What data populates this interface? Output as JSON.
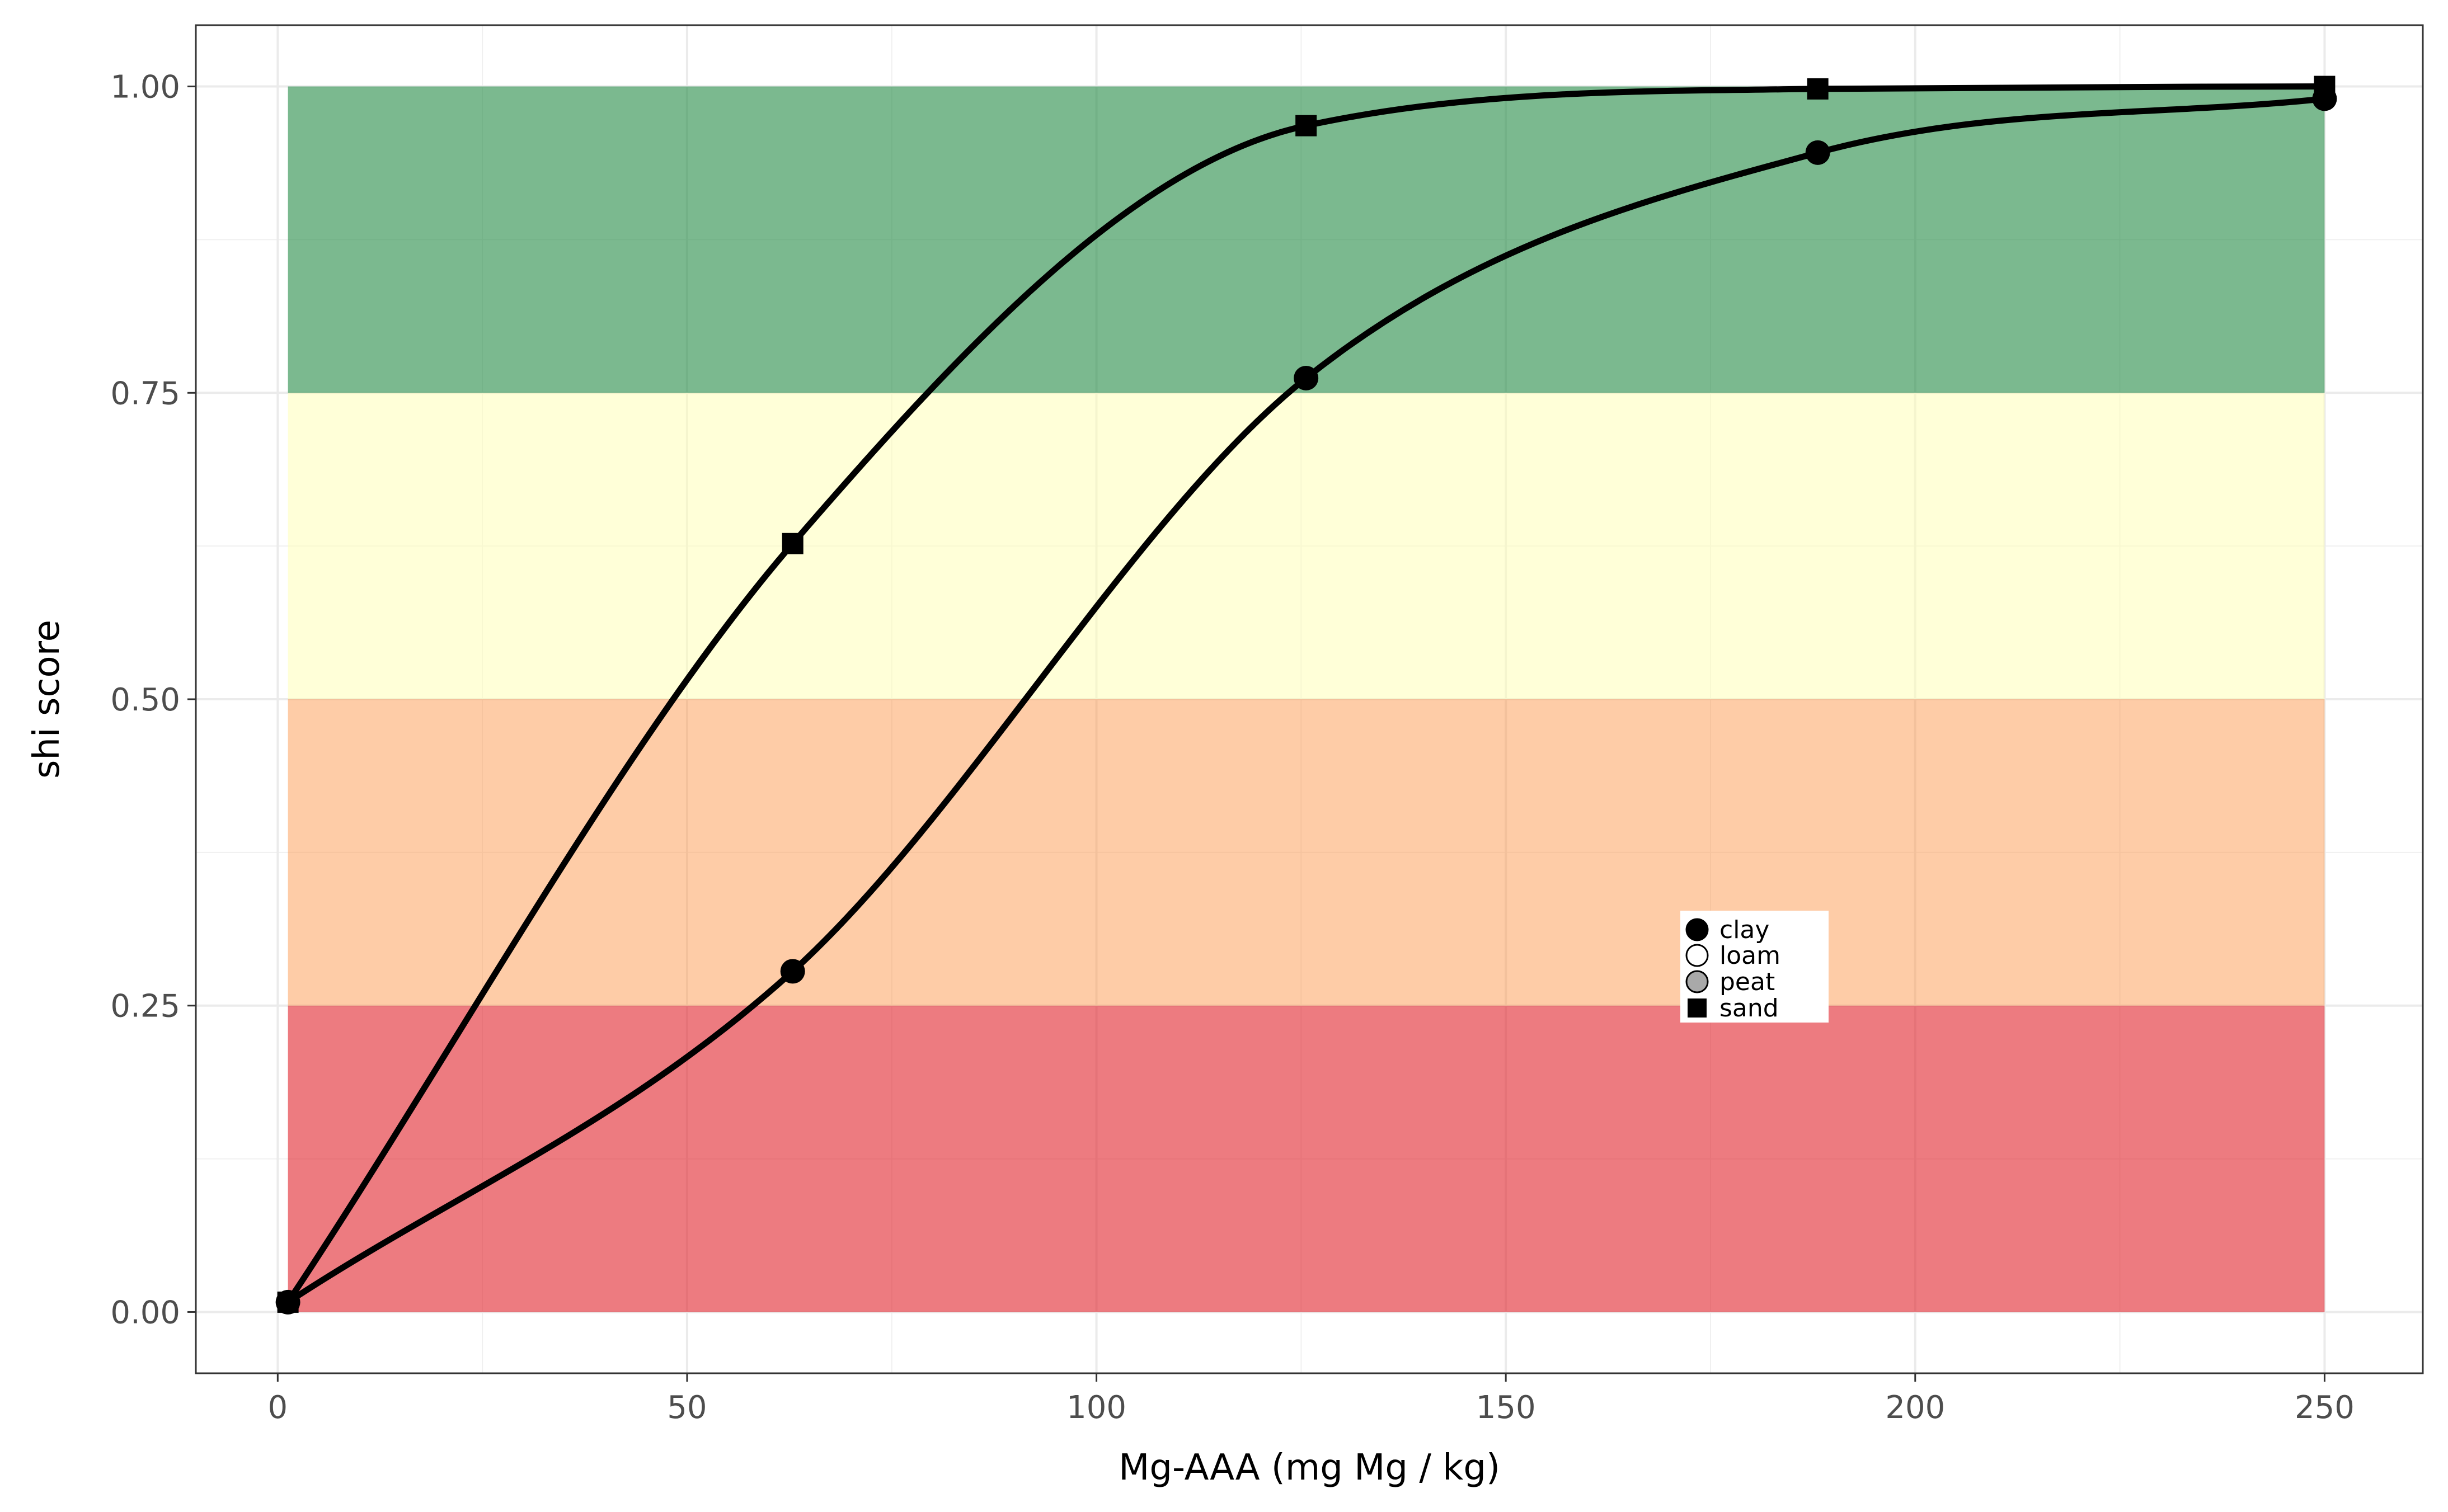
{
  "chart_data": {
    "type": "line",
    "title": "",
    "xlabel": "Mg-AAA (mg Mg / kg)",
    "ylabel": "shi score",
    "xlim": [
      -10,
      262
    ],
    "ylim": [
      -0.05,
      1.05
    ],
    "x_ticks": [
      0,
      50,
      100,
      150,
      200,
      250
    ],
    "x_tick_labels": [
      "0",
      "50",
      "100",
      "150",
      "200",
      "250"
    ],
    "y_ticks": [
      0,
      0.25,
      0.5,
      0.75,
      1.0
    ],
    "y_tick_labels": [
      "0.00",
      "0.25",
      "0.50",
      "0.75",
      "1.00"
    ],
    "grid": true,
    "bands": [
      {
        "from": 0.0,
        "to": 0.25,
        "x_from": 1.25,
        "x_to": 250,
        "color": "#e1232b",
        "opacity": 0.6
      },
      {
        "from": 0.25,
        "to": 0.5,
        "x_from": 1.25,
        "x_to": 250,
        "color": "#fd8d3c",
        "opacity": 0.45
      },
      {
        "from": 0.5,
        "to": 0.75,
        "x_from": 1.25,
        "x_to": 250,
        "color": "#ffffb2",
        "opacity": 0.5
      },
      {
        "from": 0.75,
        "to": 1.0,
        "x_from": 1.25,
        "x_to": 250,
        "color": "#238b45",
        "opacity": 0.6
      }
    ],
    "series": [
      {
        "marker": "circle",
        "x": [
          1.25,
          62.9,
          125.6,
          188.1,
          250
        ],
        "y": [
          0.008,
          0.278,
          0.762,
          0.946,
          0.99
        ]
      },
      {
        "marker": "square",
        "x": [
          1.25,
          62.9,
          125.6,
          188.1,
          250
        ],
        "y": [
          0.008,
          0.627,
          0.968,
          0.998,
          1.0
        ]
      }
    ],
    "legend": {
      "placement": "inside",
      "items": [
        {
          "label": "clay",
          "shape": "circle",
          "fill": "#000000"
        },
        {
          "label": "loam",
          "shape": "circle",
          "fill": "#ffffff"
        },
        {
          "label": "peat",
          "shape": "circle",
          "fill": "#a9a9a9"
        },
        {
          "label": "sand",
          "shape": "square",
          "fill": "#000000"
        }
      ]
    }
  }
}
